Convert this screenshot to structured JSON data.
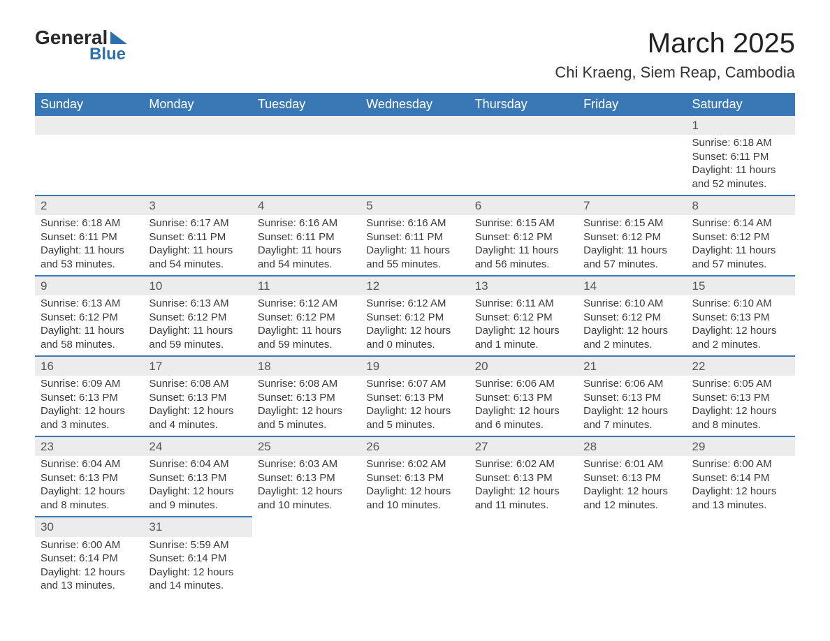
{
  "brand": {
    "line1": "General",
    "line2": "Blue"
  },
  "title": "March 2025",
  "location": "Chi Kraeng, Siem Reap, Cambodia",
  "colors": {
    "header_bg": "#3a78b5",
    "header_fg": "#ffffff",
    "daynum_bg": "#ececec",
    "row_border": "#3a78b5",
    "body_fg": "#3a3a3a",
    "brand_accent": "#2f6fb0"
  },
  "day_headers": [
    "Sunday",
    "Monday",
    "Tuesday",
    "Wednesday",
    "Thursday",
    "Friday",
    "Saturday"
  ],
  "weeks": [
    [
      null,
      null,
      null,
      null,
      null,
      null,
      {
        "day": "1",
        "sunrise": "Sunrise: 6:18 AM",
        "sunset": "Sunset: 6:11 PM",
        "daylight1": "Daylight: 11 hours",
        "daylight2": "and 52 minutes."
      }
    ],
    [
      {
        "day": "2",
        "sunrise": "Sunrise: 6:18 AM",
        "sunset": "Sunset: 6:11 PM",
        "daylight1": "Daylight: 11 hours",
        "daylight2": "and 53 minutes."
      },
      {
        "day": "3",
        "sunrise": "Sunrise: 6:17 AM",
        "sunset": "Sunset: 6:11 PM",
        "daylight1": "Daylight: 11 hours",
        "daylight2": "and 54 minutes."
      },
      {
        "day": "4",
        "sunrise": "Sunrise: 6:16 AM",
        "sunset": "Sunset: 6:11 PM",
        "daylight1": "Daylight: 11 hours",
        "daylight2": "and 54 minutes."
      },
      {
        "day": "5",
        "sunrise": "Sunrise: 6:16 AM",
        "sunset": "Sunset: 6:11 PM",
        "daylight1": "Daylight: 11 hours",
        "daylight2": "and 55 minutes."
      },
      {
        "day": "6",
        "sunrise": "Sunrise: 6:15 AM",
        "sunset": "Sunset: 6:12 PM",
        "daylight1": "Daylight: 11 hours",
        "daylight2": "and 56 minutes."
      },
      {
        "day": "7",
        "sunrise": "Sunrise: 6:15 AM",
        "sunset": "Sunset: 6:12 PM",
        "daylight1": "Daylight: 11 hours",
        "daylight2": "and 57 minutes."
      },
      {
        "day": "8",
        "sunrise": "Sunrise: 6:14 AM",
        "sunset": "Sunset: 6:12 PM",
        "daylight1": "Daylight: 11 hours",
        "daylight2": "and 57 minutes."
      }
    ],
    [
      {
        "day": "9",
        "sunrise": "Sunrise: 6:13 AM",
        "sunset": "Sunset: 6:12 PM",
        "daylight1": "Daylight: 11 hours",
        "daylight2": "and 58 minutes."
      },
      {
        "day": "10",
        "sunrise": "Sunrise: 6:13 AM",
        "sunset": "Sunset: 6:12 PM",
        "daylight1": "Daylight: 11 hours",
        "daylight2": "and 59 minutes."
      },
      {
        "day": "11",
        "sunrise": "Sunrise: 6:12 AM",
        "sunset": "Sunset: 6:12 PM",
        "daylight1": "Daylight: 11 hours",
        "daylight2": "and 59 minutes."
      },
      {
        "day": "12",
        "sunrise": "Sunrise: 6:12 AM",
        "sunset": "Sunset: 6:12 PM",
        "daylight1": "Daylight: 12 hours",
        "daylight2": "and 0 minutes."
      },
      {
        "day": "13",
        "sunrise": "Sunrise: 6:11 AM",
        "sunset": "Sunset: 6:12 PM",
        "daylight1": "Daylight: 12 hours",
        "daylight2": "and 1 minute."
      },
      {
        "day": "14",
        "sunrise": "Sunrise: 6:10 AM",
        "sunset": "Sunset: 6:12 PM",
        "daylight1": "Daylight: 12 hours",
        "daylight2": "and 2 minutes."
      },
      {
        "day": "15",
        "sunrise": "Sunrise: 6:10 AM",
        "sunset": "Sunset: 6:13 PM",
        "daylight1": "Daylight: 12 hours",
        "daylight2": "and 2 minutes."
      }
    ],
    [
      {
        "day": "16",
        "sunrise": "Sunrise: 6:09 AM",
        "sunset": "Sunset: 6:13 PM",
        "daylight1": "Daylight: 12 hours",
        "daylight2": "and 3 minutes."
      },
      {
        "day": "17",
        "sunrise": "Sunrise: 6:08 AM",
        "sunset": "Sunset: 6:13 PM",
        "daylight1": "Daylight: 12 hours",
        "daylight2": "and 4 minutes."
      },
      {
        "day": "18",
        "sunrise": "Sunrise: 6:08 AM",
        "sunset": "Sunset: 6:13 PM",
        "daylight1": "Daylight: 12 hours",
        "daylight2": "and 5 minutes."
      },
      {
        "day": "19",
        "sunrise": "Sunrise: 6:07 AM",
        "sunset": "Sunset: 6:13 PM",
        "daylight1": "Daylight: 12 hours",
        "daylight2": "and 5 minutes."
      },
      {
        "day": "20",
        "sunrise": "Sunrise: 6:06 AM",
        "sunset": "Sunset: 6:13 PM",
        "daylight1": "Daylight: 12 hours",
        "daylight2": "and 6 minutes."
      },
      {
        "day": "21",
        "sunrise": "Sunrise: 6:06 AM",
        "sunset": "Sunset: 6:13 PM",
        "daylight1": "Daylight: 12 hours",
        "daylight2": "and 7 minutes."
      },
      {
        "day": "22",
        "sunrise": "Sunrise: 6:05 AM",
        "sunset": "Sunset: 6:13 PM",
        "daylight1": "Daylight: 12 hours",
        "daylight2": "and 8 minutes."
      }
    ],
    [
      {
        "day": "23",
        "sunrise": "Sunrise: 6:04 AM",
        "sunset": "Sunset: 6:13 PM",
        "daylight1": "Daylight: 12 hours",
        "daylight2": "and 8 minutes."
      },
      {
        "day": "24",
        "sunrise": "Sunrise: 6:04 AM",
        "sunset": "Sunset: 6:13 PM",
        "daylight1": "Daylight: 12 hours",
        "daylight2": "and 9 minutes."
      },
      {
        "day": "25",
        "sunrise": "Sunrise: 6:03 AM",
        "sunset": "Sunset: 6:13 PM",
        "daylight1": "Daylight: 12 hours",
        "daylight2": "and 10 minutes."
      },
      {
        "day": "26",
        "sunrise": "Sunrise: 6:02 AM",
        "sunset": "Sunset: 6:13 PM",
        "daylight1": "Daylight: 12 hours",
        "daylight2": "and 10 minutes."
      },
      {
        "day": "27",
        "sunrise": "Sunrise: 6:02 AM",
        "sunset": "Sunset: 6:13 PM",
        "daylight1": "Daylight: 12 hours",
        "daylight2": "and 11 minutes."
      },
      {
        "day": "28",
        "sunrise": "Sunrise: 6:01 AM",
        "sunset": "Sunset: 6:13 PM",
        "daylight1": "Daylight: 12 hours",
        "daylight2": "and 12 minutes."
      },
      {
        "day": "29",
        "sunrise": "Sunrise: 6:00 AM",
        "sunset": "Sunset: 6:14 PM",
        "daylight1": "Daylight: 12 hours",
        "daylight2": "and 13 minutes."
      }
    ],
    [
      {
        "day": "30",
        "sunrise": "Sunrise: 6:00 AM",
        "sunset": "Sunset: 6:14 PM",
        "daylight1": "Daylight: 12 hours",
        "daylight2": "and 13 minutes."
      },
      {
        "day": "31",
        "sunrise": "Sunrise: 5:59 AM",
        "sunset": "Sunset: 6:14 PM",
        "daylight1": "Daylight: 12 hours",
        "daylight2": "and 14 minutes."
      },
      null,
      null,
      null,
      null,
      null
    ]
  ]
}
